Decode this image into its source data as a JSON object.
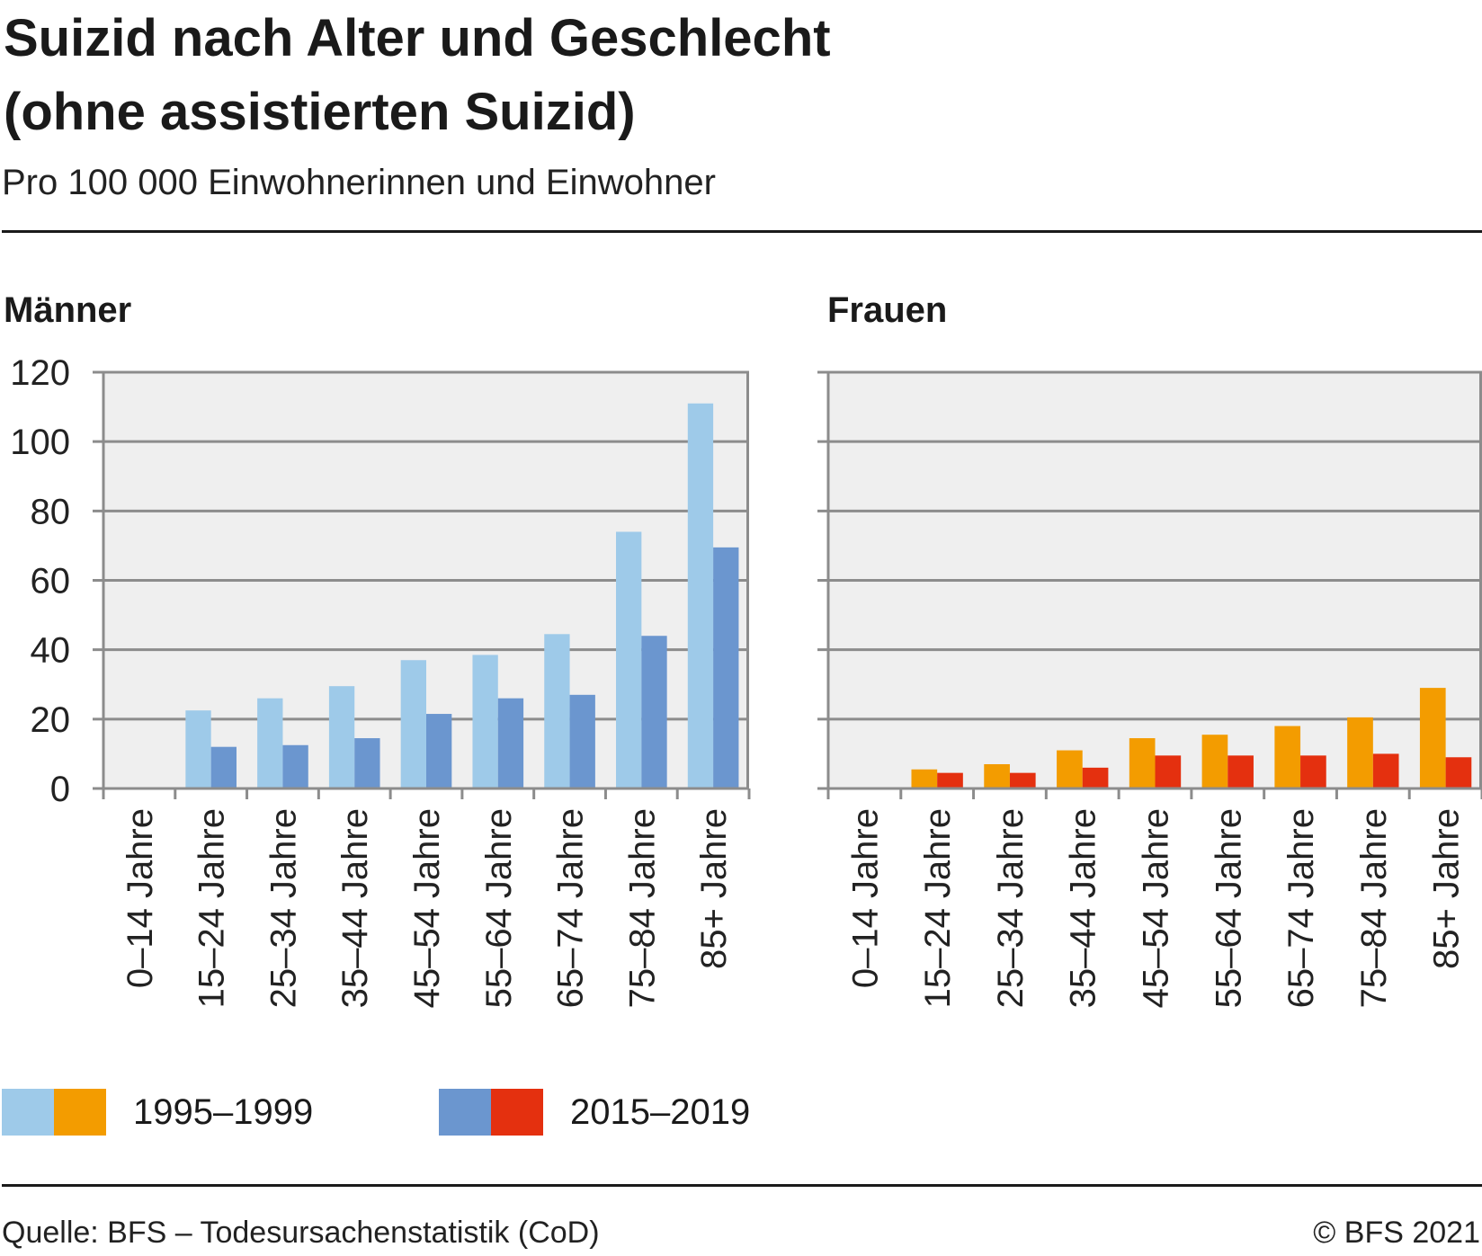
{
  "header": {
    "title_line1": "Suizid nach Alter und Geschlecht",
    "title_line2": "(ohne assistierten Suizid)",
    "subtitle": "Pro 100 000 Einwohnerinnen und Einwohner"
  },
  "footer": {
    "source": "Quelle: BFS – Todesursachenstatistik (CoD)",
    "copyright": "© BFS 2021"
  },
  "legend": [
    {
      "label": "1995–1999",
      "colors": [
        "#9ecae9",
        "#f39c00"
      ]
    },
    {
      "label": "2015–2019",
      "colors": [
        "#6b96cf",
        "#e4300f"
      ]
    }
  ],
  "chart_data": [
    {
      "type": "bar",
      "title": "Männer",
      "categories": [
        "0–14 Jahre",
        "15–24 Jahre",
        "25–34 Jahre",
        "35–44 Jahre",
        "45–54 Jahre",
        "55–64 Jahre",
        "65–74 Jahre",
        "75–84 Jahre",
        "85+ Jahre"
      ],
      "series": [
        {
          "name": "1995–1999",
          "color": "#9ecae9",
          "values": [
            0,
            22.5,
            26,
            29.5,
            37,
            38.5,
            44.5,
            74,
            111
          ]
        },
        {
          "name": "2015–2019",
          "color": "#6b96cf",
          "values": [
            0,
            12,
            12.5,
            14.5,
            21.5,
            26,
            27,
            44,
            69.5
          ]
        }
      ],
      "ylim": [
        0,
        120
      ],
      "yticks": [
        0,
        20,
        40,
        60,
        80,
        100,
        120
      ],
      "show_yticks": true,
      "grid": true,
      "legend": "bottom"
    },
    {
      "type": "bar",
      "title": "Frauen",
      "categories": [
        "0–14 Jahre",
        "15–24 Jahre",
        "25–34 Jahre",
        "35–44 Jahre",
        "45–54 Jahre",
        "55–64 Jahre",
        "65–74 Jahre",
        "75–84 Jahre",
        "85+ Jahre"
      ],
      "series": [
        {
          "name": "1995–1999",
          "color": "#f39c00",
          "values": [
            0,
            5.5,
            7,
            11,
            14.5,
            15.5,
            18,
            20.5,
            29
          ]
        },
        {
          "name": "2015–2019",
          "color": "#e4300f",
          "values": [
            0,
            4.5,
            4.5,
            6,
            9.5,
            9.5,
            9.5,
            10,
            9
          ]
        }
      ],
      "ylim": [
        0,
        120
      ],
      "yticks": [
        0,
        20,
        40,
        60,
        80,
        100,
        120
      ],
      "show_yticks": false,
      "grid": true,
      "legend": "bottom"
    }
  ]
}
